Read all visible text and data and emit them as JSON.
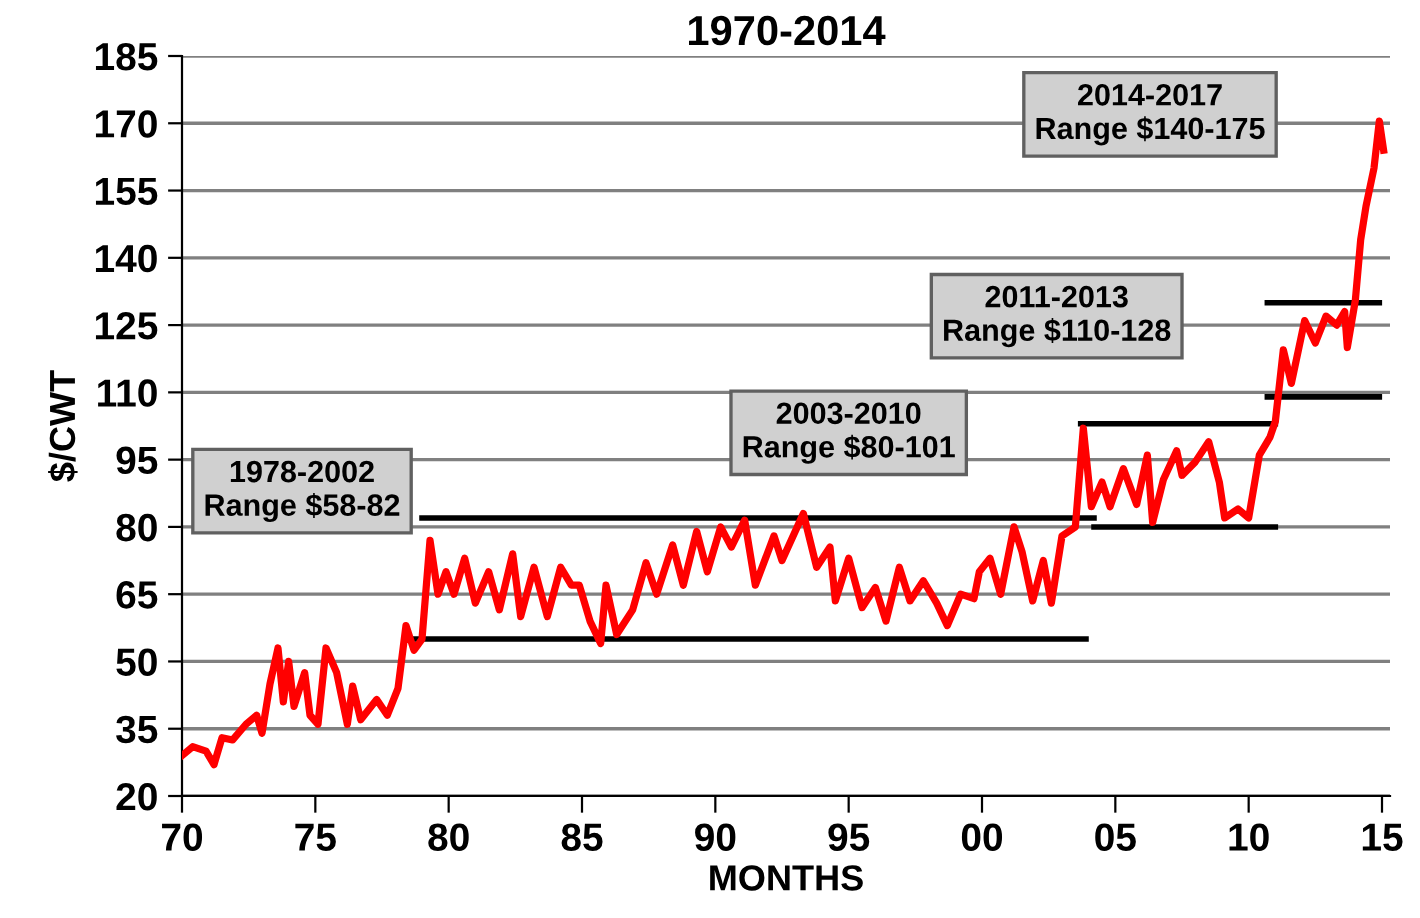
{
  "chart_data": {
    "type": "line",
    "title": "1970-2014",
    "xlabel": "MONTHS",
    "ylabel": "$/CWT",
    "xlim": [
      1970,
      2015.3
    ],
    "ylim": [
      20,
      185
    ],
    "xticks": [
      {
        "value": 1970,
        "label": "70"
      },
      {
        "value": 1975,
        "label": "75"
      },
      {
        "value": 1980,
        "label": "80"
      },
      {
        "value": 1985,
        "label": "85"
      },
      {
        "value": 1990,
        "label": "90"
      },
      {
        "value": 1995,
        "label": "95"
      },
      {
        "value": 2000,
        "label": "00"
      },
      {
        "value": 2005,
        "label": "05"
      },
      {
        "value": 2010,
        "label": "10"
      },
      {
        "value": 2015,
        "label": "15"
      }
    ],
    "yticks": [
      20,
      35,
      50,
      65,
      80,
      95,
      110,
      125,
      140,
      155,
      170,
      185
    ],
    "grid": "y",
    "line_style": "solid",
    "marker": "none",
    "annotations": [
      "1978-2002\nRange $58-82",
      "2003-2010\nRange $80-101",
      "2011-2013\nRange $110-128",
      "2014-2017\nRange $140-175"
    ],
    "series": [
      {
        "color": "#ff0000",
        "x": [
          1970.0,
          1970.4,
          1970.9,
          1971.2,
          1971.5,
          1971.9,
          1972.4,
          1972.8,
          1973.0,
          1973.3,
          1973.6,
          1973.8,
          1974.0,
          1974.2,
          1974.6,
          1974.8,
          1975.1,
          1975.4,
          1975.8,
          1976.2,
          1976.4,
          1976.7,
          1977.3,
          1977.7,
          1978.1,
          1978.4,
          1978.7,
          1979.0,
          1979.3,
          1979.6,
          1979.9,
          1980.2,
          1980.6,
          1981.0,
          1981.5,
          1981.9,
          1982.4,
          1982.7,
          1983.2,
          1983.7,
          1984.2,
          1984.6,
          1984.9,
          1985.3,
          1985.7,
          1985.9,
          1986.3,
          1986.9,
          1987.4,
          1987.8,
          1988.4,
          1988.8,
          1989.3,
          1989.7,
          1990.2,
          1990.6,
          1991.1,
          1991.5,
          1992.2,
          1992.5,
          1993.3,
          1993.8,
          1994.3,
          1994.5,
          1995.0,
          1995.5,
          1996.0,
          1996.4,
          1996.9,
          1997.3,
          1997.8,
          1998.3,
          1998.7,
          1999.2,
          1999.7,
          1999.9,
          2000.3,
          2000.7,
          2001.2,
          2001.5,
          2001.9,
          2002.3,
          2002.6,
          2003.0,
          2003.5,
          2003.8,
          2004.1,
          2004.5,
          2004.8,
          2005.3,
          2005.8,
          2006.2,
          2006.4,
          2006.8,
          2007.3,
          2007.5,
          2008.0,
          2008.5,
          2008.9,
          2009.1,
          2009.6,
          2010.0,
          2010.4,
          2010.8,
          2011.0,
          2011.3,
          2011.6,
          2012.1,
          2012.5,
          2012.9,
          2013.3,
          2013.6,
          2013.7,
          2014.0,
          2014.2,
          2014.4,
          2014.7,
          2014.9,
          2015.06
        ],
        "values": [
          29,
          31,
          30,
          27,
          33,
          32.5,
          36,
          38,
          34,
          45,
          53,
          41,
          50,
          40,
          47.5,
          38,
          36,
          53,
          47.5,
          36,
          44.5,
          37,
          41.5,
          38,
          44,
          58,
          52.5,
          55,
          77,
          65,
          70,
          65,
          73,
          63,
          70,
          61.5,
          74,
          60,
          71,
          60,
          71,
          67,
          67,
          59,
          54,
          67,
          56,
          61.5,
          72,
          65,
          76,
          67,
          79,
          70,
          80,
          75.5,
          81.5,
          67,
          78,
          72.5,
          83,
          71,
          75.5,
          63.5,
          73,
          62,
          66.5,
          59,
          71,
          63.5,
          68,
          63,
          58,
          65,
          64,
          70,
          73,
          65,
          80,
          74.5,
          63.5,
          72.5,
          63,
          78,
          80,
          102,
          84.5,
          90,
          84.5,
          93,
          85,
          96,
          81,
          90.5,
          97,
          91.5,
          94.5,
          99,
          90,
          82,
          84,
          82,
          96,
          100,
          103.5,
          119.5,
          112,
          126,
          121,
          127,
          125,
          128,
          120,
          130.5,
          144,
          151.5,
          160,
          170.5,
          164
        ]
      },
      {
        "color": "#000000",
        "x": [
          1979.0,
          2004.2
        ],
        "values": [
          82,
          82
        ]
      },
      {
        "color": "#000000",
        "x": [
          1978.6,
          2003.9
        ],
        "values": [
          55,
          55
        ]
      },
      {
        "color": "#000000",
        "x": [
          2003.7,
          2011.0
        ],
        "values": [
          103,
          103
        ]
      },
      {
        "color": "#000000",
        "x": [
          2004.2,
          2011.0
        ],
        "values": [
          80,
          80
        ]
      },
      {
        "color": "#000000",
        "x": [
          2010.7,
          2014.9
        ],
        "values": [
          130,
          130
        ]
      },
      {
        "color": "#000000",
        "x": [
          2010.7,
          2014.9
        ],
        "values": [
          109,
          109
        ]
      }
    ]
  }
}
